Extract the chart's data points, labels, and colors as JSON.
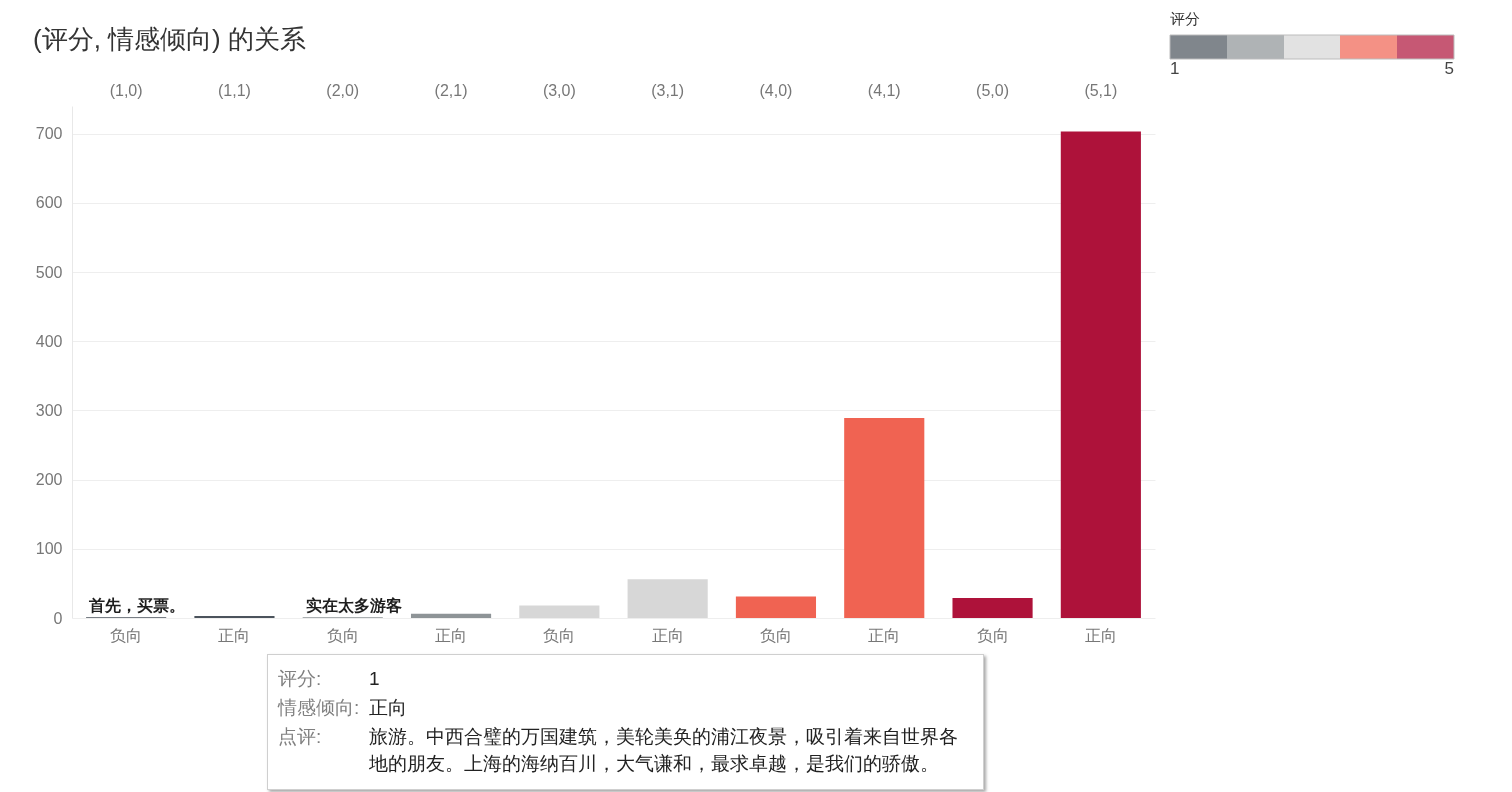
{
  "chart_data": {
    "type": "bar",
    "title": "(评分, 情感倾向) 的关系",
    "categories": [
      "(1,0)",
      "(1,1)",
      "(2,0)",
      "(2,1)",
      "(3,0)",
      "(3,1)",
      "(4,0)",
      "(4,1)",
      "(5,0)",
      "(5,1)"
    ],
    "values": [
      1,
      3,
      1,
      6,
      18,
      56,
      31,
      289,
      29,
      703
    ],
    "colors": [
      "#4b535c",
      "#4b535c",
      "#8e9497",
      "#8e9497",
      "#d7d7d7",
      "#d7d7d7",
      "#f06352",
      "#f06352",
      "#ae123a",
      "#ae123a"
    ],
    "clabel": "评分",
    "clim": [
      1,
      5
    ],
    "cticks": [
      1,
      5
    ],
    "ylim": [
      0,
      740
    ],
    "yticks": [
      0,
      100,
      200,
      300,
      400,
      500,
      600,
      700
    ],
    "grid": "y",
    "annotations": [
      "负向",
      "正向",
      "负向",
      "正向",
      "负向",
      "正向",
      "负向",
      "正向",
      "负向",
      "正向",
      {
        "text": "首先，买票。",
        "x": "(1,0)",
        "y": 1
      },
      {
        "text": "实在太多游客",
        "x": "(2,0)",
        "y": 1
      },
      "评分:",
      "1",
      "情感倾向:",
      "正向",
      "点评:",
      "旅游。中西合璧的万国建筑，美轮美奂的浦江夜景，吸引着来自世界各地的朋友。上海的海纳百川，大气谦和，最求卓越，是我们的骄傲。"
    ]
  }
}
